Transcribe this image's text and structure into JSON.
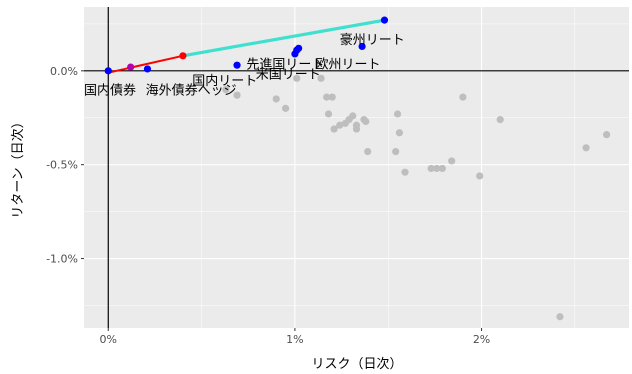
{
  "chart_data": {
    "type": "scatter",
    "title": "",
    "xlabel": "リスク（日次）",
    "ylabel": "リターン（日次）",
    "xlim": [
      -0.0013,
      0.0279
    ],
    "ylim": [
      -0.0137,
      0.0034
    ],
    "x_ticks": [
      {
        "value": 0.0,
        "label": "0%"
      },
      {
        "value": 0.01,
        "label": "1%"
      },
      {
        "value": 0.02,
        "label": "2%"
      }
    ],
    "y_ticks": [
      {
        "value": 0.0,
        "label": "0.0%"
      },
      {
        "value": -0.005,
        "label": "-0.5%"
      },
      {
        "value": -0.01,
        "label": "-1.0%"
      }
    ],
    "grid": true,
    "colors": {
      "panel": "#ebebeb",
      "grid": "#ffffff",
      "gray_points": "#bebebe",
      "highlight_points": "#0000ff",
      "frontier_red": "#ff0000",
      "frontier_cyan": "#40e0d0",
      "purple_point": "#b000b0"
    },
    "gray_points": [
      {
        "x": 0.0063,
        "y": -0.001
      },
      {
        "x": 0.0069,
        "y": -0.0013
      },
      {
        "x": 0.009,
        "y": -0.0015
      },
      {
        "x": 0.0095,
        "y": -0.002
      },
      {
        "x": 0.0101,
        "y": -0.0004
      },
      {
        "x": 0.0114,
        "y": -0.0004
      },
      {
        "x": 0.0117,
        "y": -0.0014
      },
      {
        "x": 0.012,
        "y": -0.0014
      },
      {
        "x": 0.0118,
        "y": -0.0023
      },
      {
        "x": 0.0121,
        "y": -0.0031
      },
      {
        "x": 0.0124,
        "y": -0.0029
      },
      {
        "x": 0.0127,
        "y": -0.0028
      },
      {
        "x": 0.0129,
        "y": -0.0026
      },
      {
        "x": 0.0131,
        "y": -0.0024
      },
      {
        "x": 0.0133,
        "y": -0.0029
      },
      {
        "x": 0.0133,
        "y": -0.0031
      },
      {
        "x": 0.0137,
        "y": -0.0026
      },
      {
        "x": 0.0138,
        "y": -0.0027
      },
      {
        "x": 0.0139,
        "y": -0.0043
      },
      {
        "x": 0.0154,
        "y": -0.0043
      },
      {
        "x": 0.0155,
        "y": -0.0023
      },
      {
        "x": 0.0156,
        "y": -0.0033
      },
      {
        "x": 0.0159,
        "y": -0.0054
      },
      {
        "x": 0.0173,
        "y": -0.0052
      },
      {
        "x": 0.0176,
        "y": -0.0052
      },
      {
        "x": 0.0179,
        "y": -0.0052
      },
      {
        "x": 0.0184,
        "y": -0.0048
      },
      {
        "x": 0.019,
        "y": -0.0014
      },
      {
        "x": 0.0199,
        "y": -0.0056
      },
      {
        "x": 0.021,
        "y": -0.0026
      },
      {
        "x": 0.0242,
        "y": -0.0131
      },
      {
        "x": 0.0256,
        "y": -0.0041
      },
      {
        "x": 0.0267,
        "y": -0.0034
      }
    ],
    "highlight_points": [
      {
        "x": 0.0,
        "y": 0.0
      },
      {
        "x": 0.0021,
        "y": 0.0001
      },
      {
        "x": 0.0069,
        "y": 0.0003
      },
      {
        "x": 0.01,
        "y": 0.0009
      },
      {
        "x": 0.0101,
        "y": 0.0011
      },
      {
        "x": 0.0102,
        "y": 0.0012
      },
      {
        "x": 0.0136,
        "y": 0.0013
      },
      {
        "x": 0.0148,
        "y": 0.0027
      }
    ],
    "purple_point": {
      "x": 0.0012,
      "y": 0.0002
    },
    "frontier": [
      {
        "name": "red",
        "points": [
          {
            "x": 0.0,
            "y": -0.0001
          },
          {
            "x": 0.004,
            "y": 0.0008
          }
        ]
      },
      {
        "name": "cyan",
        "points": [
          {
            "x": 0.004,
            "y": 0.0008
          },
          {
            "x": 0.0148,
            "y": 0.0027
          }
        ]
      }
    ],
    "frontier_points": [
      {
        "x": 0.004,
        "y": 0.0008
      }
    ],
    "annotations": [
      {
        "text": "豪州リート",
        "x": 0.0124,
        "y": 0.0017
      },
      {
        "text": "欧州リート",
        "x": 0.0111,
        "y": 0.0004
      },
      {
        "text": "先進国リート",
        "x": 0.0074,
        "y": 0.0004
      },
      {
        "text": "米国リート",
        "x": 0.0079,
        "y": -0.00015
      },
      {
        "text": "国内リート",
        "x": 0.0045,
        "y": -0.0005
      },
      {
        "text": "海外債券へッジ",
        "x": 0.002,
        "y": -0.001
      },
      {
        "text": "国内債券",
        "x": -0.0013,
        "y": -0.001
      }
    ]
  }
}
